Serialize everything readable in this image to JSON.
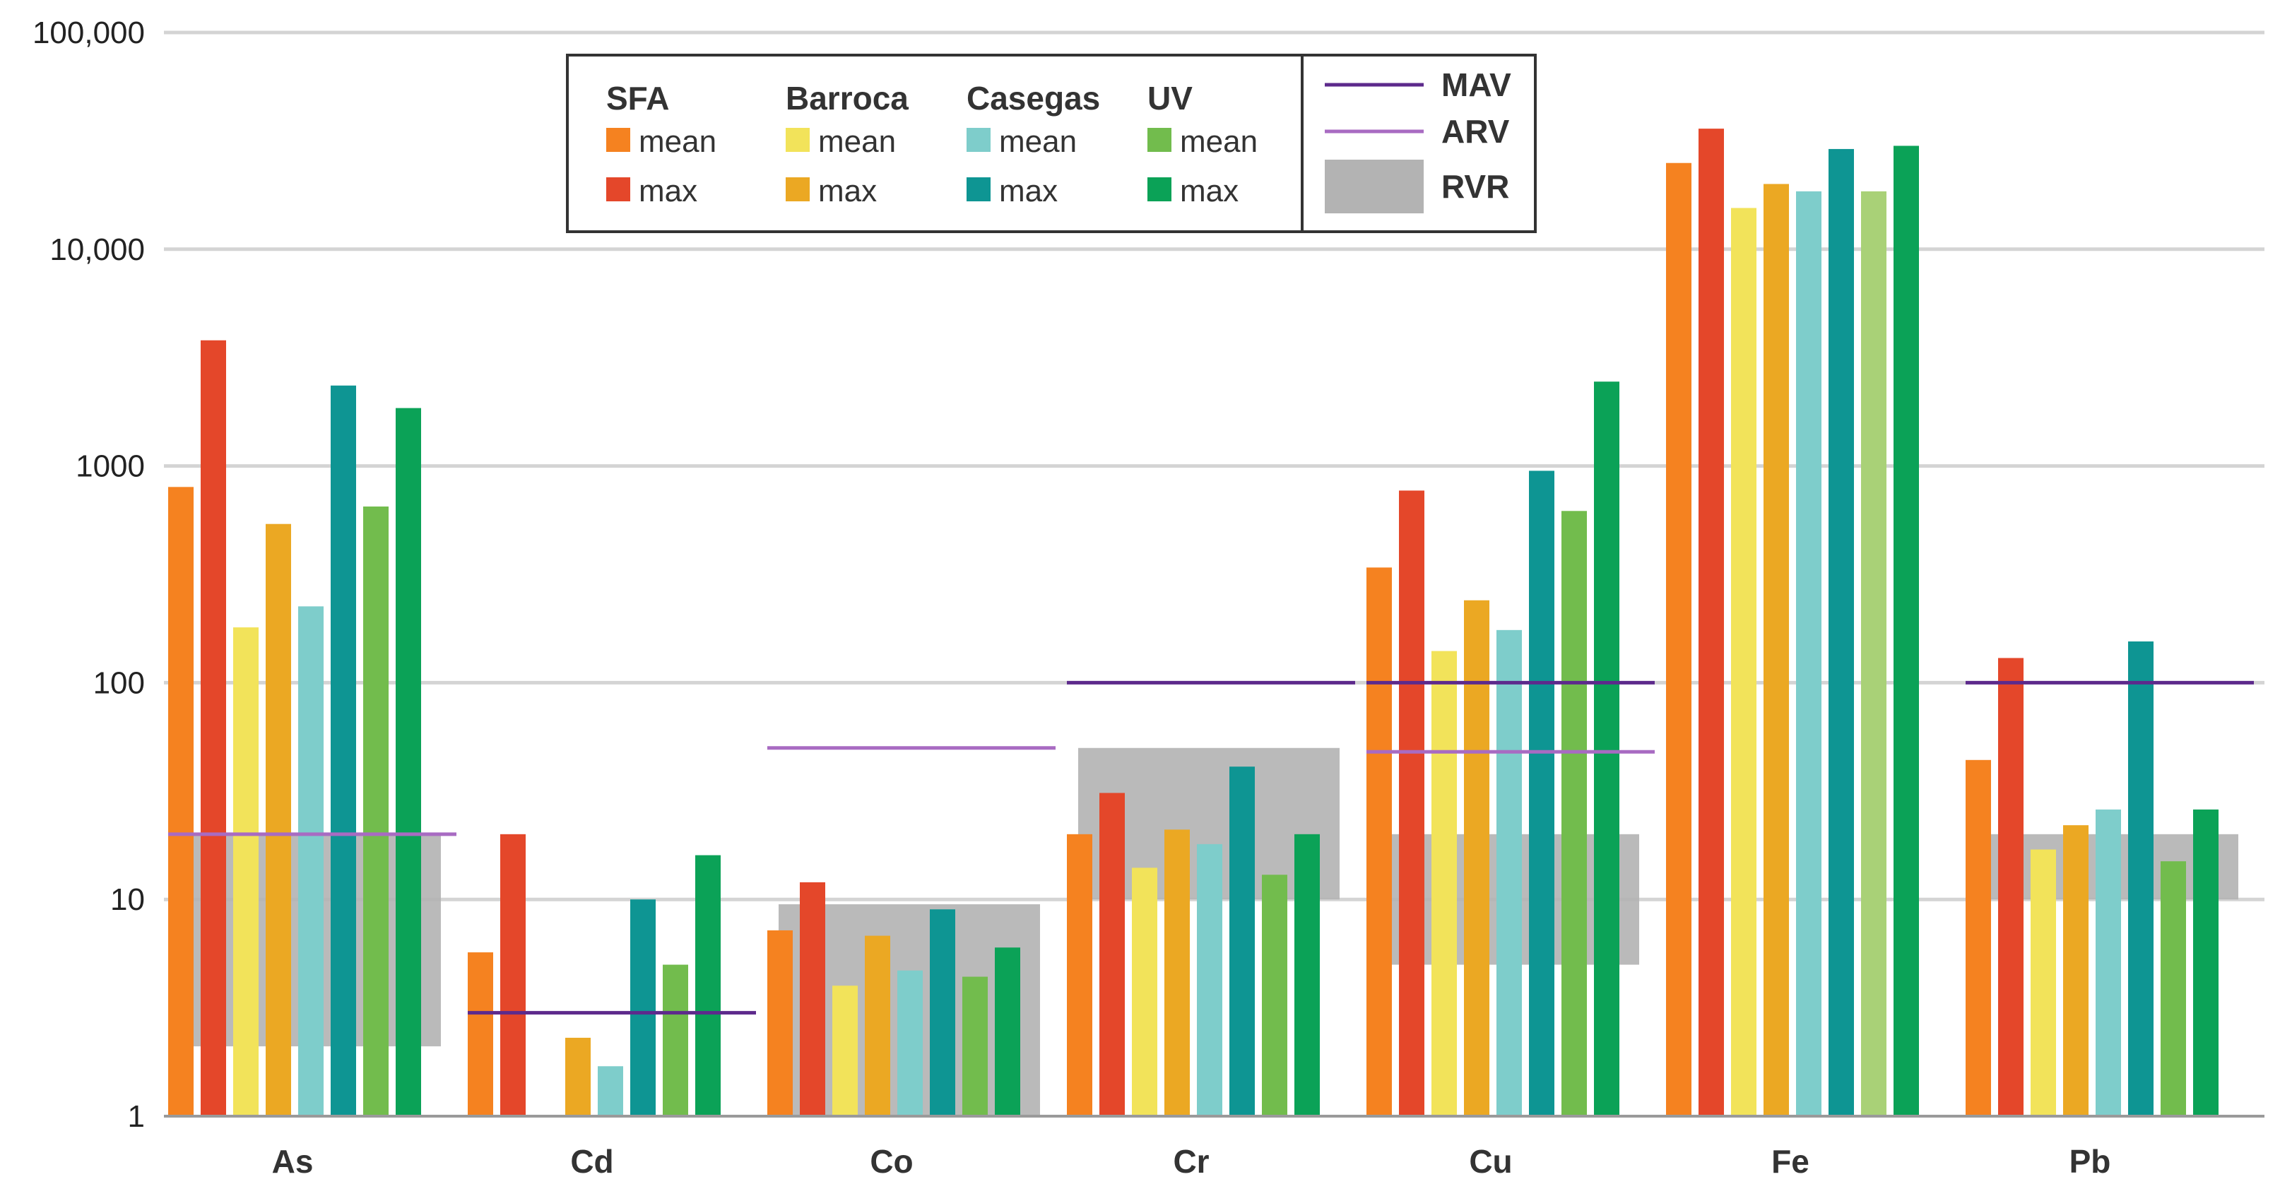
{
  "chart_data": {
    "type": "bar",
    "title": "",
    "xlabel": "",
    "ylabel": "",
    "y_scale": "log",
    "ylim": [
      1,
      100000
    ],
    "y_ticks": [
      1,
      10,
      100,
      1000,
      10000,
      100000
    ],
    "y_tick_labels": [
      "1",
      "10",
      "100",
      "1000",
      "10,000",
      "100,000"
    ],
    "grid": "horizontal",
    "legend_position": "top-center",
    "categories": [
      "As",
      "Cd",
      "Co",
      "Cr",
      "Cu",
      "Fe",
      "Pb"
    ],
    "series": [
      {
        "group": "SFA",
        "stat": "mean",
        "color": "#F58220",
        "values": [
          800,
          5.7,
          7.2,
          20,
          340,
          25000,
          44
        ]
      },
      {
        "group": "SFA",
        "stat": "max",
        "color": "#E4472A",
        "values": [
          3800,
          20,
          12,
          31,
          770,
          36000,
          130
        ]
      },
      {
        "group": "Barroca",
        "stat": "mean",
        "color": "#F2E35A",
        "values": [
          180,
          null,
          4,
          14,
          140,
          15500,
          17
        ]
      },
      {
        "group": "Barroca",
        "stat": "max",
        "color": "#EBA823",
        "values": [
          540,
          2.3,
          6.8,
          21,
          240,
          20000,
          22
        ]
      },
      {
        "group": "Casegas",
        "stat": "mean",
        "color": "#7ECDCB",
        "values": [
          225,
          1.7,
          4.7,
          18,
          175,
          18500,
          26
        ]
      },
      {
        "group": "Casegas",
        "stat": "max",
        "color": "#0E9593",
        "values": [
          2350,
          10,
          9,
          41,
          950,
          29000,
          155
        ]
      },
      {
        "group": "UV",
        "stat": "mean",
        "color": "#72BC4D",
        "values": [
          650,
          5,
          4.4,
          13,
          620,
          18500,
          15
        ]
      },
      {
        "group": "UV",
        "stat": "max",
        "color": "#0BA257",
        "values": [
          1850,
          16,
          6,
          20,
          2450,
          30000,
          26
        ]
      }
    ],
    "fe_uv_mean_color": "#A9D177",
    "reference_lines": {
      "MAV": {
        "color": "#5D2A8C",
        "values": [
          null,
          3,
          null,
          100,
          100,
          null,
          100
        ]
      },
      "ARV": {
        "color": "#A86BC2",
        "values": [
          20,
          null,
          50,
          null,
          48,
          null,
          null
        ]
      }
    },
    "reference_ranges": {
      "RVR": {
        "color": "#b3b3b3",
        "ranges": [
          [
            2.1,
            20
          ],
          null,
          [
            1,
            9.5
          ],
          [
            10,
            50
          ],
          [
            5,
            20
          ],
          null,
          [
            10,
            20
          ]
        ]
      }
    },
    "legend": {
      "groups": [
        {
          "name": "SFA",
          "items": [
            {
              "label": "mean",
              "color": "#F58220"
            },
            {
              "label": "max",
              "color": "#E4472A"
            }
          ]
        },
        {
          "name": "Barroca",
          "items": [
            {
              "label": "mean",
              "color": "#F2E35A"
            },
            {
              "label": "max",
              "color": "#EBA823"
            }
          ]
        },
        {
          "name": "Casegas",
          "items": [
            {
              "label": "mean",
              "color": "#7ECDCB"
            },
            {
              "label": "max",
              "color": "#0E9593"
            }
          ]
        },
        {
          "name": "UV",
          "items": [
            {
              "label": "mean",
              "color": "#72BC4D"
            },
            {
              "label": "max",
              "color": "#0BA257"
            }
          ]
        }
      ],
      "references": [
        {
          "label": "MAV",
          "kind": "line",
          "color": "#5D2A8C"
        },
        {
          "label": "ARV",
          "kind": "line",
          "color": "#A86BC2"
        },
        {
          "label": "RVR",
          "kind": "box",
          "color": "#b3b3b3"
        }
      ]
    }
  }
}
